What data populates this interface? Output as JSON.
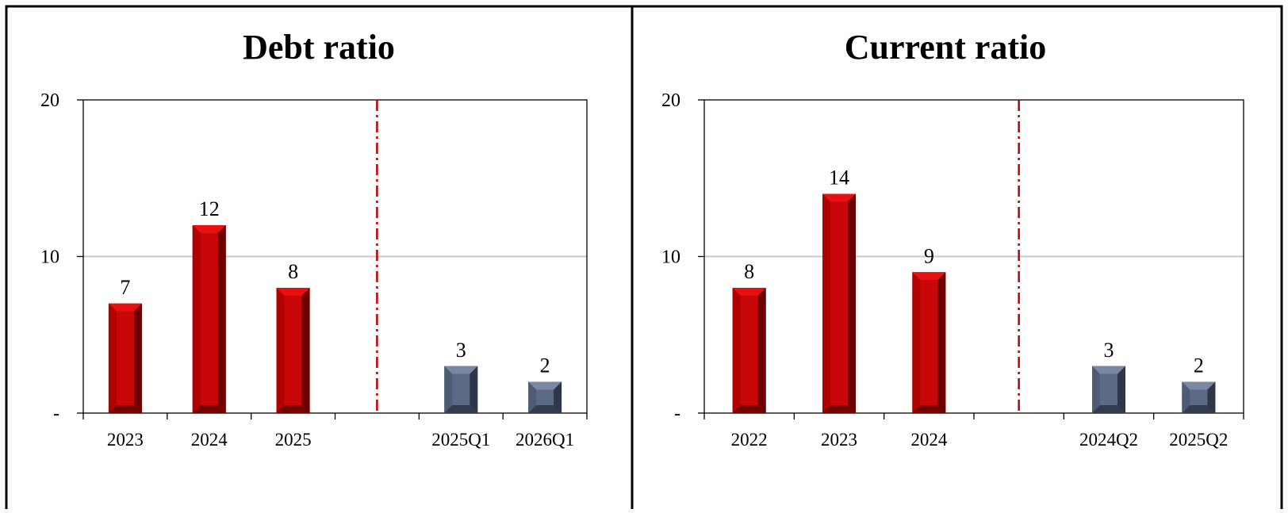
{
  "colors": {
    "annual_front": "#B00000",
    "annual_light": "#E81010",
    "annual_dark": "#6A0000",
    "quarterly_front": "#4E5B74",
    "quarterly_light": "#7A88A4",
    "quarterly_dark": "#2E3748",
    "divider": "#C00000",
    "grid": "#C8C8C8",
    "axis": "#000000",
    "panel_border": "#000000"
  },
  "chart_data": [
    {
      "type": "bar",
      "title": "Debt ratio",
      "xlabel": "",
      "ylabel": "",
      "ylim": [
        0,
        20
      ],
      "yticks": [
        0,
        10,
        20
      ],
      "ytick_labels": [
        "-",
        "10",
        "20"
      ],
      "grid": true,
      "categories": [
        "2023",
        "2024",
        "2025",
        "",
        "2025Q1",
        "2026Q1"
      ],
      "values": [
        7,
        12,
        8,
        null,
        3,
        2
      ],
      "value_labels": [
        "7",
        "12",
        "8",
        "",
        "3",
        "2"
      ],
      "groups": [
        "annual",
        "annual",
        "annual",
        "gap",
        "quarterly",
        "quarterly"
      ]
    },
    {
      "type": "bar",
      "title": "Current ratio",
      "xlabel": "",
      "ylabel": "",
      "ylim": [
        0,
        20
      ],
      "yticks": [
        0,
        10,
        20
      ],
      "ytick_labels": [
        "-",
        "10",
        "20"
      ],
      "grid": true,
      "categories": [
        "2022",
        "2023",
        "2024",
        "",
        "2024Q2",
        "2025Q2"
      ],
      "values": [
        8,
        14,
        9,
        null,
        3,
        2
      ],
      "value_labels": [
        "8",
        "14",
        "9",
        "",
        "3",
        "2"
      ],
      "groups": [
        "annual",
        "annual",
        "annual",
        "gap",
        "quarterly",
        "quarterly"
      ]
    }
  ]
}
